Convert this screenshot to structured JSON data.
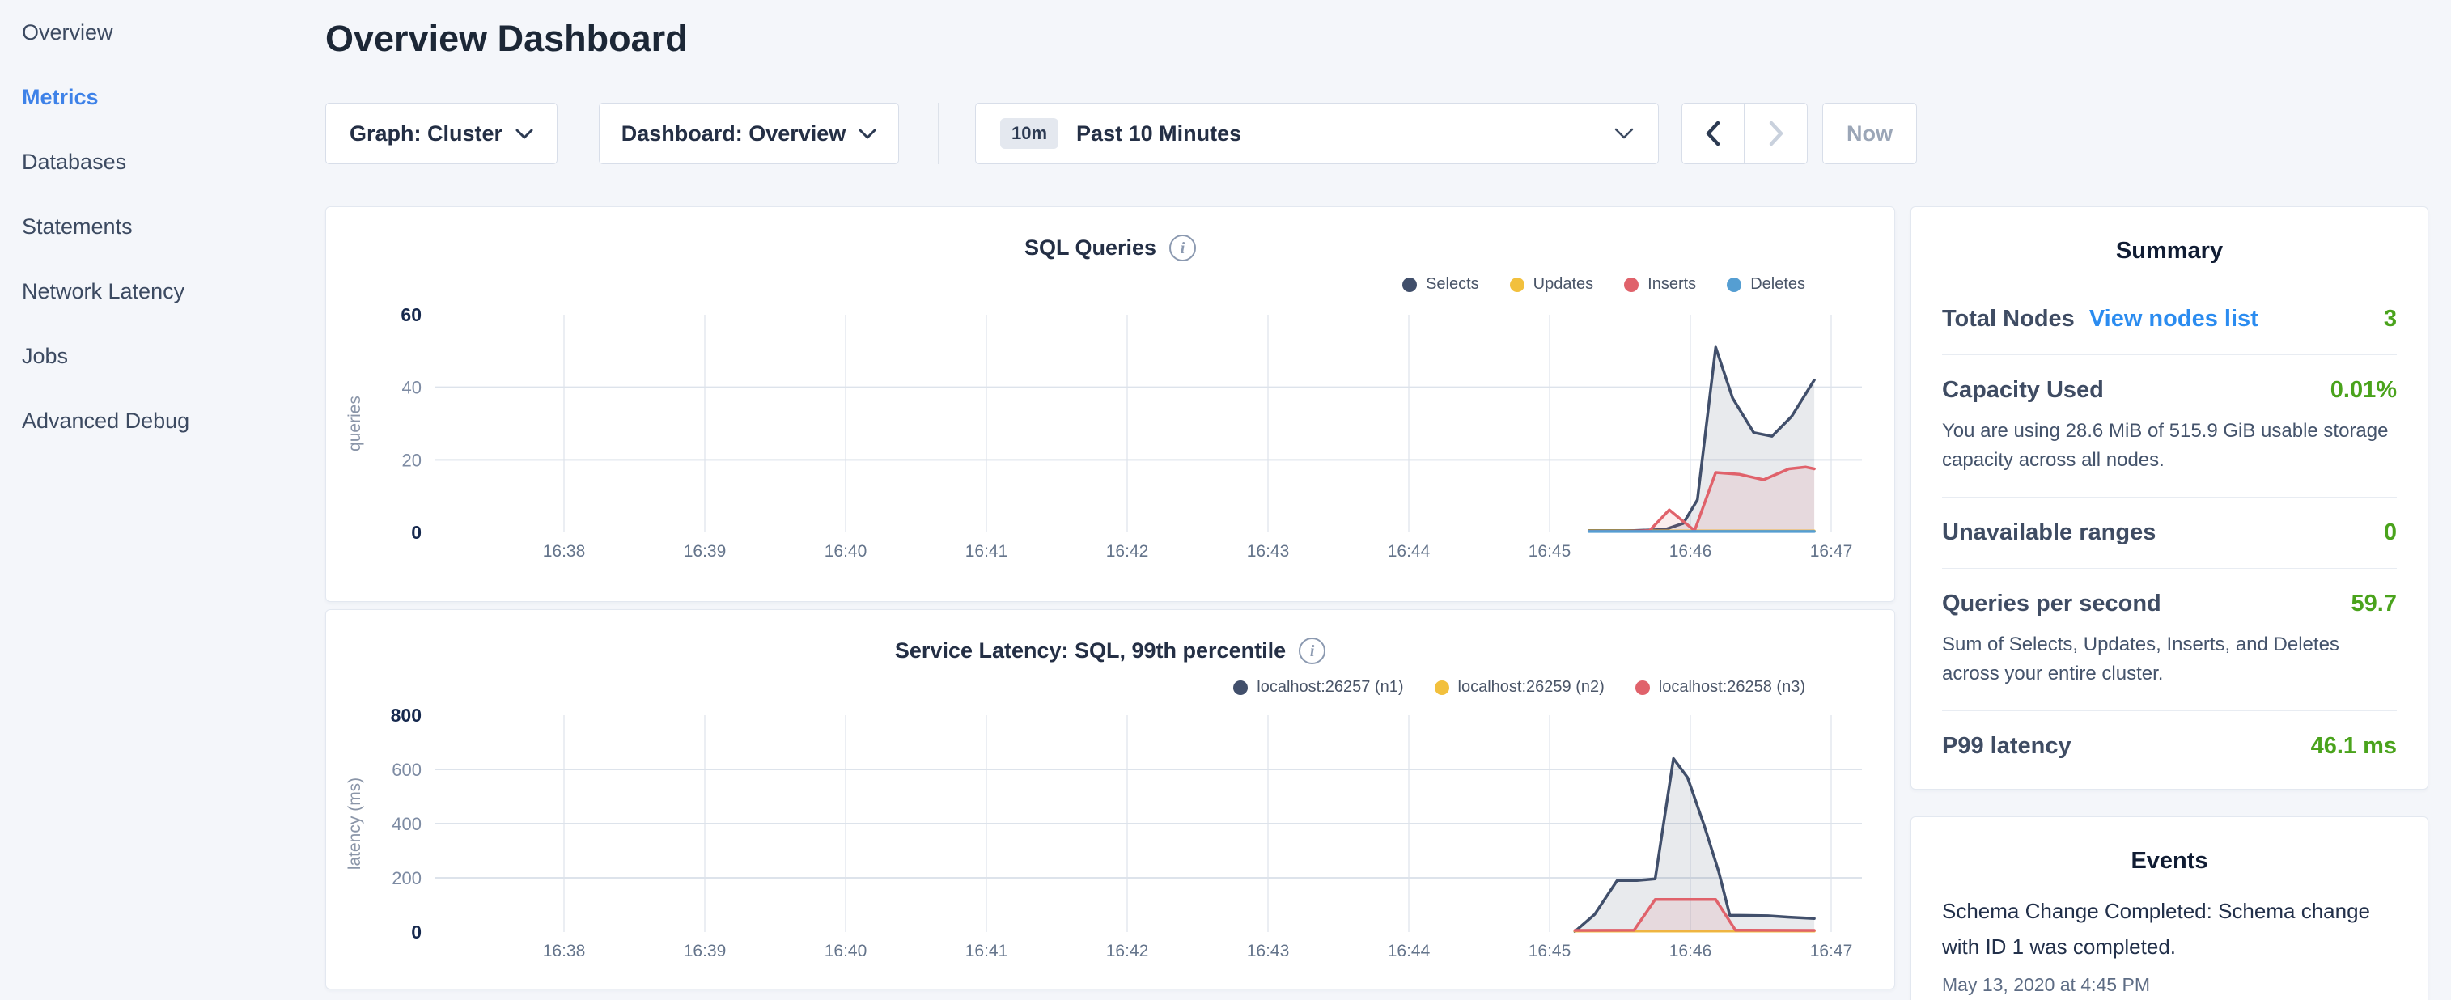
{
  "sidebar": {
    "items": [
      {
        "label": "Overview",
        "active": false
      },
      {
        "label": "Metrics",
        "active": true
      },
      {
        "label": "Databases",
        "active": false
      },
      {
        "label": "Statements",
        "active": false
      },
      {
        "label": "Network Latency",
        "active": false
      },
      {
        "label": "Jobs",
        "active": false
      },
      {
        "label": "Advanced Debug",
        "active": false
      }
    ]
  },
  "header": {
    "title": "Overview Dashboard"
  },
  "toolbar": {
    "graph_dropdown": "Graph: Cluster",
    "dashboard_dropdown": "Dashboard: Overview",
    "time_badge": "10m",
    "time_label": "Past 10 Minutes",
    "now_label": "Now"
  },
  "summary": {
    "title": "Summary",
    "rows": [
      {
        "label": "Total Nodes",
        "link": "View nodes list",
        "value": "3"
      },
      {
        "label": "Capacity Used",
        "value": "0.01%",
        "desc": "You are using 28.6 MiB of 515.9 GiB usable storage capacity across all nodes."
      },
      {
        "label": "Unavailable ranges",
        "value": "0"
      },
      {
        "label": "Queries per second",
        "value": "59.7",
        "desc": "Sum of Selects, Updates, Inserts, and Deletes across your entire cluster."
      },
      {
        "label": "P99 latency",
        "value": "46.1 ms"
      }
    ],
    "value_color": "#4aa31c",
    "link_color": "#2b8cf0"
  },
  "events": {
    "title": "Events",
    "items": [
      {
        "message": "Schema Change Completed: Schema change with ID 1 was completed.",
        "timestamp": "May 13, 2020 at 4:45 PM"
      }
    ]
  },
  "chart_data": [
    {
      "type": "area",
      "title": "SQL Queries",
      "ylabel": "queries",
      "ylim": [
        0,
        60
      ],
      "yticks": [
        {
          "v": 0,
          "label": "0",
          "major": true
        },
        {
          "v": 20,
          "label": "20",
          "major": false
        },
        {
          "v": 40,
          "label": "40",
          "major": false
        },
        {
          "v": 60,
          "label": "60",
          "major": true
        }
      ],
      "grid_y": [
        20,
        40
      ],
      "x_ticks": [
        {
          "v": 38,
          "label": "16:38"
        },
        {
          "v": 39,
          "label": "16:39"
        },
        {
          "v": 40,
          "label": "16:40"
        },
        {
          "v": 41,
          "label": "16:41"
        },
        {
          "v": 42,
          "label": "16:42"
        },
        {
          "v": 43,
          "label": "16:43"
        },
        {
          "v": 44,
          "label": "16:44"
        },
        {
          "v": 45,
          "label": "16:45"
        },
        {
          "v": 46,
          "label": "16:46"
        },
        {
          "v": 47,
          "label": "16:47"
        }
      ],
      "series": [
        {
          "name": "Selects",
          "color": "#414f6b",
          "fill": "rgba(65,79,107,0.12)",
          "points": [
            [
              45.28,
              0.5
            ],
            [
              45.6,
              0.5
            ],
            [
              45.82,
              0.8
            ],
            [
              45.95,
              2.5
            ],
            [
              46.05,
              9
            ],
            [
              46.18,
              51
            ],
            [
              46.3,
              37
            ],
            [
              46.45,
              27.5
            ],
            [
              46.58,
              26.5
            ],
            [
              46.72,
              32
            ],
            [
              46.88,
              42
            ]
          ]
        },
        {
          "name": "Updates",
          "color": "#f2c03d",
          "fill": "none",
          "points": [
            [
              45.28,
              0.4
            ],
            [
              46.88,
              0.4
            ]
          ]
        },
        {
          "name": "Inserts",
          "color": "#e0626b",
          "fill": "rgba(224,98,107,0.12)",
          "points": [
            [
              45.28,
              0.3
            ],
            [
              45.55,
              0.3
            ],
            [
              45.71,
              0.5
            ],
            [
              45.85,
              6.2
            ],
            [
              46.03,
              0.5
            ],
            [
              46.18,
              16.5
            ],
            [
              46.35,
              16
            ],
            [
              46.52,
              14.5
            ],
            [
              46.7,
              17.5
            ],
            [
              46.82,
              18
            ],
            [
              46.88,
              17.5
            ]
          ]
        },
        {
          "name": "Deletes",
          "color": "#559ed2",
          "fill": "none",
          "points": [
            [
              45.28,
              0.25
            ],
            [
              46.88,
              0.25
            ]
          ]
        }
      ]
    },
    {
      "type": "area",
      "title": "Service Latency: SQL, 99th percentile",
      "ylabel": "latency (ms)",
      "ylim": [
        0,
        800
      ],
      "yticks": [
        {
          "v": 0,
          "label": "0",
          "major": true
        },
        {
          "v": 200,
          "label": "200",
          "major": false
        },
        {
          "v": 400,
          "label": "400",
          "major": false
        },
        {
          "v": 600,
          "label": "600",
          "major": false
        },
        {
          "v": 800,
          "label": "800",
          "major": true
        }
      ],
      "grid_y": [
        200,
        400,
        600
      ],
      "x_ticks": [
        {
          "v": 38,
          "label": "16:38"
        },
        {
          "v": 39,
          "label": "16:39"
        },
        {
          "v": 40,
          "label": "16:40"
        },
        {
          "v": 41,
          "label": "16:41"
        },
        {
          "v": 42,
          "label": "16:42"
        },
        {
          "v": 43,
          "label": "16:43"
        },
        {
          "v": 44,
          "label": "16:44"
        },
        {
          "v": 45,
          "label": "16:45"
        },
        {
          "v": 46,
          "label": "16:46"
        },
        {
          "v": 47,
          "label": "16:47"
        }
      ],
      "series": [
        {
          "name": "localhost:26257 (n1)",
          "color": "#414f6b",
          "fill": "rgba(65,79,107,0.12)",
          "points": [
            [
              45.18,
              2
            ],
            [
              45.32,
              65
            ],
            [
              45.48,
              190
            ],
            [
              45.62,
              190
            ],
            [
              45.75,
              196
            ],
            [
              45.88,
              640
            ],
            [
              45.98,
              570
            ],
            [
              46.1,
              390
            ],
            [
              46.2,
              225
            ],
            [
              46.28,
              62
            ],
            [
              46.55,
              60
            ],
            [
              46.7,
              55
            ],
            [
              46.88,
              50
            ]
          ]
        },
        {
          "name": "localhost:26259 (n2)",
          "color": "#f2c03d",
          "fill": "none",
          "points": [
            [
              45.18,
              4
            ],
            [
              46.88,
              4
            ]
          ]
        },
        {
          "name": "localhost:26258 (n3)",
          "color": "#e0626b",
          "fill": "rgba(224,98,107,0.12)",
          "points": [
            [
              45.18,
              6
            ],
            [
              45.6,
              7
            ],
            [
              45.75,
              120
            ],
            [
              46.18,
              120
            ],
            [
              46.32,
              7
            ],
            [
              46.88,
              6
            ]
          ]
        }
      ]
    }
  ]
}
